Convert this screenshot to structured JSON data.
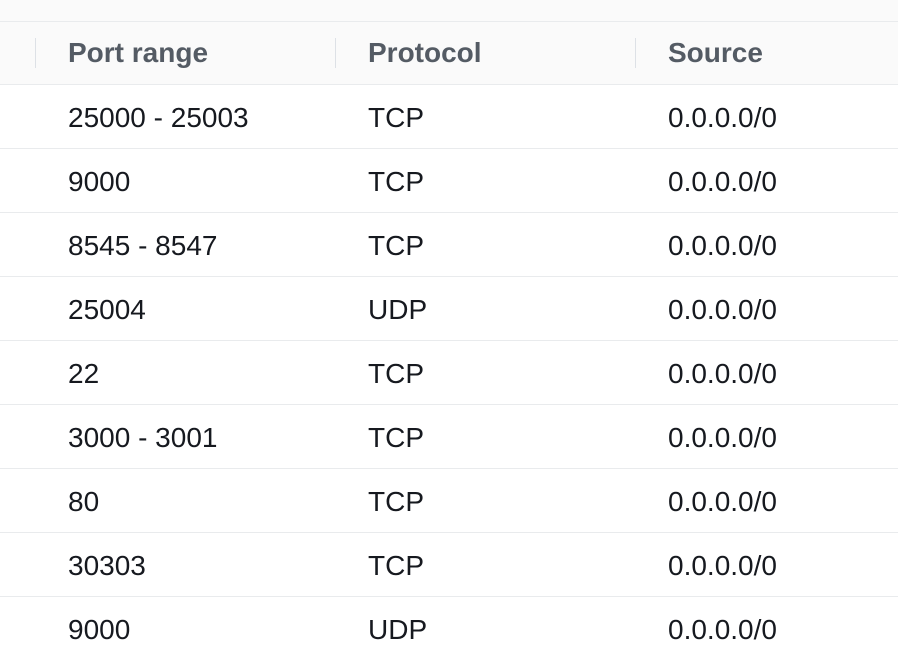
{
  "table": {
    "columns": [
      "Port range",
      "Protocol",
      "Source"
    ],
    "rows": [
      {
        "port_range": "25000 - 25003",
        "protocol": "TCP",
        "source": "0.0.0.0/0"
      },
      {
        "port_range": "9000",
        "protocol": "TCP",
        "source": "0.0.0.0/0"
      },
      {
        "port_range": "8545 - 8547",
        "protocol": "TCP",
        "source": "0.0.0.0/0"
      },
      {
        "port_range": "25004",
        "protocol": "UDP",
        "source": "0.0.0.0/0"
      },
      {
        "port_range": "22",
        "protocol": "TCP",
        "source": "0.0.0.0/0"
      },
      {
        "port_range": "3000 - 3001",
        "protocol": "TCP",
        "source": "0.0.0.0/0"
      },
      {
        "port_range": "80",
        "protocol": "TCP",
        "source": "0.0.0.0/0"
      },
      {
        "port_range": "30303",
        "protocol": "TCP",
        "source": "0.0.0.0/0"
      },
      {
        "port_range": "9000",
        "protocol": "UDP",
        "source": "0.0.0.0/0"
      }
    ]
  }
}
